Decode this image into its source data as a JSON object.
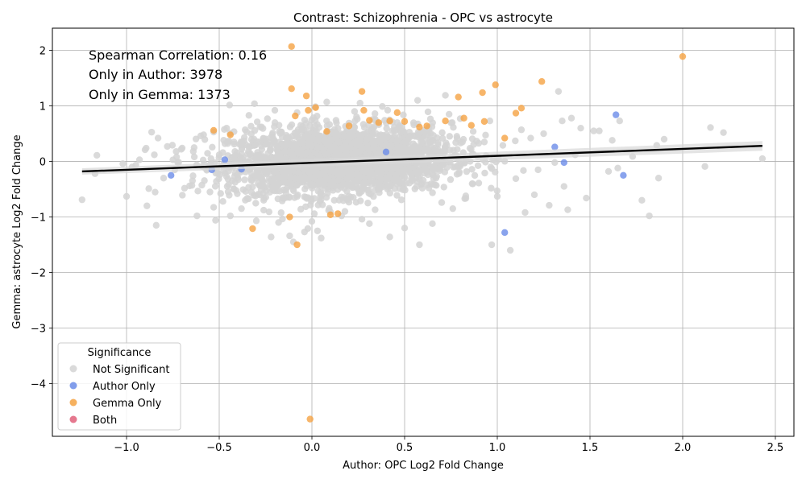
{
  "chart_data": {
    "type": "scatter",
    "title": "Contrast: Schizophrenia - OPC vs astrocyte",
    "xlabel": "Author: OPC Log2 Fold Change",
    "ylabel": "Gemma: astrocyte Log2 Fold Change",
    "xlim": [
      -1.4,
      2.6
    ],
    "ylim": [
      -4.95,
      2.4
    ],
    "xticks": [
      -1.0,
      -0.5,
      0.0,
      0.5,
      1.0,
      1.5,
      2.0,
      2.5
    ],
    "xtick_labels": [
      "−1.0",
      "−0.5",
      "0.0",
      "0.5",
      "1.0",
      "1.5",
      "2.0",
      "2.5"
    ],
    "yticks": [
      -4,
      -3,
      -2,
      -1,
      0,
      1,
      2
    ],
    "ytick_labels": [
      "−4",
      "−3",
      "−2",
      "−1",
      "0",
      "1",
      "2"
    ],
    "grid": true,
    "legend_title": "Significance",
    "legend_placement": "lower-left",
    "annotations": [
      "Spearman Correlation: 0.16",
      "Only in Author: 3978",
      "Only in Gemma: 1373"
    ],
    "regression_line": {
      "x": [
        -1.24,
        2.43
      ],
      "y": [
        -0.18,
        0.28
      ]
    },
    "series": [
      {
        "name": "Not Significant",
        "color": "#d3d3d3",
        "points": [
          [
            -1.24,
            -0.69
          ],
          [
            -1.16,
            0.11
          ],
          [
            -1.17,
            -0.22
          ],
          [
            -1.02,
            -0.04
          ],
          [
            -1.0,
            -0.63
          ],
          [
            -0.97,
            -0.1
          ],
          [
            -0.93,
            0.03
          ],
          [
            -0.9,
            0.21
          ],
          [
            -0.89,
            -0.8
          ],
          [
            -0.88,
            -0.49
          ],
          [
            -0.85,
            0.12
          ],
          [
            -0.84,
            -1.15
          ],
          [
            -0.83,
            0.42
          ],
          [
            -0.8,
            -0.3
          ],
          [
            -0.78,
            0.27
          ],
          [
            -0.74,
            -0.15
          ],
          [
            -0.73,
            0.08
          ],
          [
            -0.7,
            0.24
          ],
          [
            -0.66,
            -0.44
          ],
          [
            -0.64,
            0.18
          ],
          [
            -0.62,
            -0.98
          ],
          [
            -0.6,
            0.46
          ],
          [
            -0.58,
            -0.05
          ],
          [
            -0.55,
            -0.55
          ],
          [
            -0.53,
            0.53
          ],
          [
            -0.52,
            -1.06
          ],
          [
            -0.5,
            0.12
          ],
          [
            -0.48,
            -0.72
          ],
          [
            -0.46,
            0.6
          ],
          [
            -0.44,
            -0.98
          ],
          [
            -0.42,
            0.35
          ],
          [
            -0.4,
            -0.29
          ],
          [
            -0.38,
            -0.85
          ],
          [
            -0.36,
            0.57
          ],
          [
            -0.34,
            0.83
          ],
          [
            -0.3,
            -1.07
          ],
          [
            -0.31,
            1.04
          ],
          [
            -0.28,
            0.62
          ],
          [
            -0.26,
            -0.7
          ],
          [
            -0.24,
            0.77
          ],
          [
            -0.22,
            -1.36
          ],
          [
            -0.2,
            0.92
          ],
          [
            -0.18,
            -1.1
          ],
          [
            -0.16,
            0.44
          ],
          [
            -0.14,
            -0.51
          ],
          [
            -0.12,
            -1.34
          ],
          [
            -0.1,
            -1.45
          ],
          [
            -0.08,
            0.88
          ],
          [
            -0.06,
            -0.86
          ],
          [
            -0.04,
            -1.27
          ],
          [
            0.0,
            -1.08
          ],
          [
            0.03,
            -1.25
          ],
          [
            0.05,
            -1.38
          ],
          [
            0.08,
            1.07
          ],
          [
            0.1,
            -0.91
          ],
          [
            0.13,
            0.74
          ],
          [
            0.16,
            -0.98
          ],
          [
            0.2,
            0.69
          ],
          [
            0.23,
            0.9
          ],
          [
            0.27,
            -1.04
          ],
          [
            0.31,
            -1.12
          ],
          [
            0.34,
            0.86
          ],
          [
            0.38,
            0.99
          ],
          [
            0.42,
            -1.36
          ],
          [
            0.46,
            0.7
          ],
          [
            0.5,
            -1.2
          ],
          [
            0.55,
            0.66
          ],
          [
            0.57,
            1.1
          ],
          [
            0.58,
            -1.5
          ],
          [
            0.62,
            0.48
          ],
          [
            0.65,
            -1.12
          ],
          [
            0.7,
            -0.74
          ],
          [
            0.72,
            1.19
          ],
          [
            0.74,
            0.85
          ],
          [
            0.76,
            -0.85
          ],
          [
            0.8,
            0.77
          ],
          [
            0.83,
            -0.62
          ],
          [
            0.87,
            0.54
          ],
          [
            0.9,
            -0.39
          ],
          [
            0.93,
            0.35
          ],
          [
            0.96,
            0.73
          ],
          [
            0.97,
            -1.5
          ],
          [
            1.0,
            -0.63
          ],
          [
            1.03,
            0.29
          ],
          [
            1.07,
            -1.6
          ],
          [
            1.1,
            -0.31
          ],
          [
            1.13,
            0.57
          ],
          [
            1.15,
            -0.92
          ],
          [
            1.18,
            0.42
          ],
          [
            1.2,
            -0.6
          ],
          [
            1.22,
            -0.15
          ],
          [
            1.25,
            0.5
          ],
          [
            1.28,
            -0.79
          ],
          [
            1.31,
            -0.02
          ],
          [
            1.33,
            1.26
          ],
          [
            1.35,
            0.73
          ],
          [
            1.36,
            -0.45
          ],
          [
            1.38,
            -0.87
          ],
          [
            1.4,
            0.78
          ],
          [
            1.42,
            0.12
          ],
          [
            1.45,
            0.6
          ],
          [
            1.48,
            -0.66
          ],
          [
            1.52,
            0.55
          ],
          [
            1.55,
            0.55
          ],
          [
            1.6,
            -0.18
          ],
          [
            1.62,
            0.38
          ],
          [
            1.65,
            -0.12
          ],
          [
            1.66,
            0.73
          ],
          [
            1.73,
            0.09
          ],
          [
            1.78,
            -0.7
          ],
          [
            1.82,
            -0.98
          ],
          [
            1.87,
            -0.3
          ],
          [
            1.86,
            0.29
          ],
          [
            1.9,
            0.4
          ],
          [
            2.12,
            -0.09
          ],
          [
            2.15,
            0.61
          ],
          [
            2.22,
            0.52
          ],
          [
            2.43,
            0.05
          ]
        ]
      },
      {
        "name": "Author Only",
        "color": "#6b8ce8",
        "points": [
          [
            -0.76,
            -0.25
          ],
          [
            -0.54,
            -0.15
          ],
          [
            -0.47,
            0.03
          ],
          [
            -0.38,
            -0.14
          ],
          [
            0.4,
            0.17
          ],
          [
            1.04,
            -1.28
          ],
          [
            1.31,
            0.26
          ],
          [
            1.36,
            -0.02
          ],
          [
            1.64,
            0.84
          ],
          [
            1.68,
            -0.25
          ]
        ]
      },
      {
        "name": "Gemma Only",
        "color": "#f5a343",
        "points": [
          [
            -0.53,
            0.56
          ],
          [
            -0.44,
            0.48
          ],
          [
            -0.32,
            -1.21
          ],
          [
            -0.11,
            2.07
          ],
          [
            -0.11,
            1.31
          ],
          [
            -0.09,
            0.82
          ],
          [
            -0.08,
            -1.5
          ],
          [
            -0.03,
            1.18
          ],
          [
            -0.02,
            0.92
          ],
          [
            0.02,
            0.97
          ],
          [
            -0.12,
            -1.0
          ],
          [
            0.08,
            0.54
          ],
          [
            0.1,
            -0.96
          ],
          [
            0.14,
            -0.94
          ],
          [
            0.2,
            0.64
          ],
          [
            0.27,
            1.26
          ],
          [
            0.28,
            0.92
          ],
          [
            0.31,
            0.74
          ],
          [
            0.36,
            0.7
          ],
          [
            0.42,
            0.73
          ],
          [
            0.46,
            0.88
          ],
          [
            0.5,
            0.72
          ],
          [
            0.58,
            0.62
          ],
          [
            0.62,
            0.64
          ],
          [
            0.72,
            0.73
          ],
          [
            0.79,
            1.16
          ],
          [
            0.82,
            0.78
          ],
          [
            0.86,
            0.65
          ],
          [
            0.92,
            1.24
          ],
          [
            0.93,
            0.72
          ],
          [
            0.99,
            1.38
          ],
          [
            1.04,
            0.42
          ],
          [
            1.1,
            0.87
          ],
          [
            1.13,
            0.96
          ],
          [
            1.24,
            1.44
          ],
          [
            2.0,
            1.89
          ],
          [
            -0.01,
            -4.64
          ]
        ]
      },
      {
        "name": "Both",
        "color": "#e0607a",
        "points": []
      }
    ]
  }
}
